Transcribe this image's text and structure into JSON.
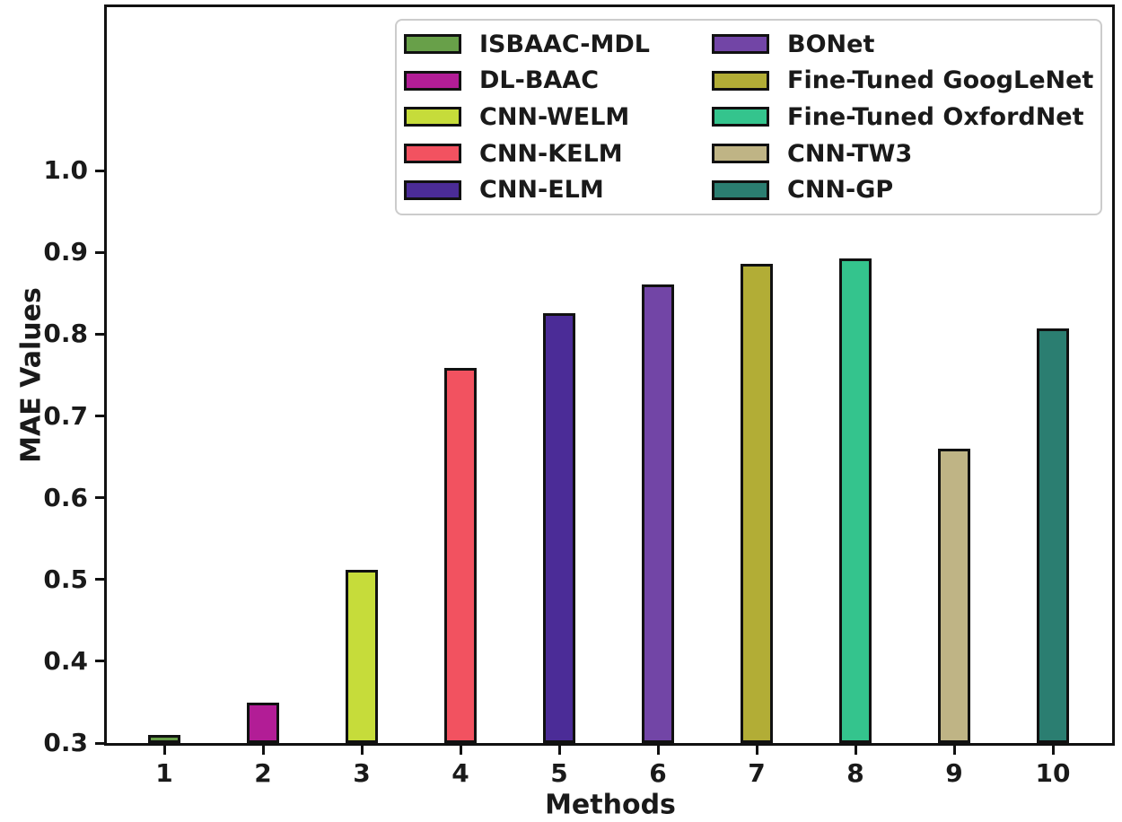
{
  "chart_data": {
    "type": "bar",
    "title": "",
    "xlabel": "Methods",
    "ylabel": "MAE Values",
    "ylim": [
      0.3,
      1.2
    ],
    "yticks": [
      0.3,
      0.4,
      0.5,
      0.6,
      0.7,
      0.8,
      0.9,
      1.0
    ],
    "grid": false,
    "legend_position": "upper center, 2 columns, 5 rows per column",
    "categories": [
      "1",
      "2",
      "3",
      "4",
      "5",
      "6",
      "7",
      "8",
      "9",
      "10"
    ],
    "series": [
      {
        "method": "1",
        "name": "ISBAAC-MDL",
        "value": 0.31,
        "color": "#68a049"
      },
      {
        "method": "2",
        "name": "DL-BAAC",
        "value": 0.349,
        "color": "#b21d96"
      },
      {
        "method": "3",
        "name": "CNN-WELM",
        "value": 0.512,
        "color": "#c6dc3a"
      },
      {
        "method": "4",
        "name": "CNN-KELM",
        "value": 0.759,
        "color": "#f25260"
      },
      {
        "method": "5",
        "name": "CNN-ELM",
        "value": 0.826,
        "color": "#4b2c97"
      },
      {
        "method": "6",
        "name": "BONet",
        "value": 0.861,
        "color": "#7245a6"
      },
      {
        "method": "7",
        "name": "Fine-Tuned GoogLeNet",
        "value": 0.886,
        "color": "#b2ad36"
      },
      {
        "method": "8",
        "name": "Fine-Tuned OxfordNet",
        "value": 0.893,
        "color": "#34c48d"
      },
      {
        "method": "9",
        "name": "CNN-TW3",
        "value": 0.66,
        "color": "#bfb485"
      },
      {
        "method": "10",
        "name": "CNN-GP",
        "value": 0.807,
        "color": "#2b7e71"
      }
    ],
    "axis_color": "#111111",
    "bar_edge_color": "#111111",
    "legend_border_color": "#cccccc"
  }
}
